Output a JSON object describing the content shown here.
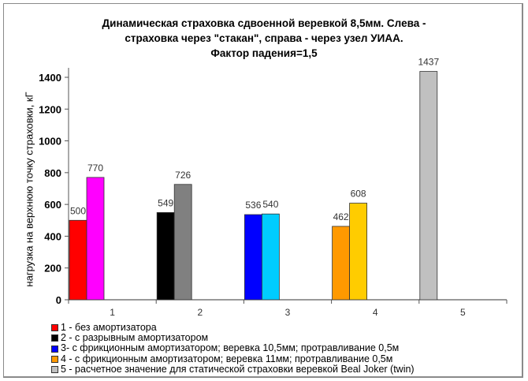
{
  "chart_data": {
    "type": "bar",
    "title": "Динамическая страховка сдвоенной веревкой  8,5мм. Слева - страховка через \"стакан\", справа - через узел УИАА. Фактор падения=1,5",
    "title_lines": [
      "Динамическая страховка сдвоенной веревкой  8,5мм. Слева -",
      "страховка через \"стакан\", справа - через узел УИАА.",
      "Фактор падения=1,5"
    ],
    "xlabel": "",
    "ylabel": "нагрузка на верхнюю точку страховки, кГ",
    "ylim": [
      0,
      1400
    ],
    "yticks": [
      0,
      200,
      400,
      600,
      800,
      1000,
      1200,
      1400
    ],
    "categories": [
      "1",
      "2",
      "3",
      "4",
      "5"
    ],
    "grid": false,
    "legend_position": "bottom",
    "groups": [
      {
        "category": "1",
        "bars": [
          {
            "side": "left (стакан)",
            "value": 500,
            "color": "#ff0000"
          },
          {
            "side": "right (узел УИАА)",
            "value": 770,
            "color": "#ff00ff"
          }
        ]
      },
      {
        "category": "2",
        "bars": [
          {
            "side": "left (стакан)",
            "value": 549,
            "color": "#000000"
          },
          {
            "side": "right (узел УИАА)",
            "value": 726,
            "color": "#808080"
          }
        ]
      },
      {
        "category": "3",
        "bars": [
          {
            "side": "left (стакан)",
            "value": 536,
            "color": "#0000ff"
          },
          {
            "side": "right (узел УИАА)",
            "value": 540,
            "color": "#00ccff"
          }
        ]
      },
      {
        "category": "4",
        "bars": [
          {
            "side": "left (стакан)",
            "value": 462,
            "color": "#ff9900"
          },
          {
            "side": "right (узел УИАА)",
            "value": 608,
            "color": "#ffcc00"
          }
        ]
      },
      {
        "category": "5",
        "bars": [
          {
            "side": "single",
            "value": 1437,
            "color": "#c0c0c0"
          }
        ]
      }
    ],
    "legend": [
      {
        "label": "1 - без амортизатора",
        "color": "#ff0000"
      },
      {
        "label": "2 - с разрывным амортизатором",
        "color": "#000000"
      },
      {
        "label": "3- с фрикционным амортизатором; веревка 10,5мм; протравливание 0,5м",
        "color": "#0000ff"
      },
      {
        "label": "4 - с фрикционным амортизатором; веревка 11мм; протравливание 0,5м",
        "color": "#ff9900"
      },
      {
        "label": "5 - расчетное значение для статической страховки веревкой Beal Joker (twin)",
        "color": "#c0c0c0"
      }
    ]
  }
}
